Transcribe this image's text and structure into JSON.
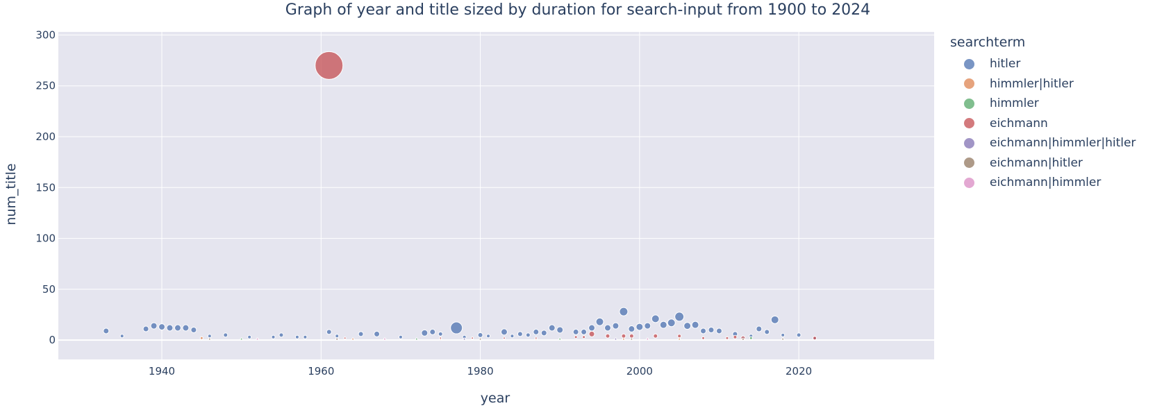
{
  "chart_data": {
    "type": "scatter",
    "title": "Graph of year and title sized by duration for search-input  from 1900 to 2024",
    "xlabel": "year",
    "ylabel": "num_title",
    "xlim": [
      1927,
      2037
    ],
    "ylim": [
      -19,
      303
    ],
    "xticks": [
      1940,
      1960,
      1980,
      2000,
      2020
    ],
    "yticks": [
      0,
      50,
      100,
      150,
      200,
      250,
      300
    ],
    "grid": true,
    "legend_title": "searchterm",
    "legend_position": "right",
    "series": [
      {
        "name": "hitler",
        "color": "#4c72b0",
        "x": [
          1933,
          1935,
          1938,
          1939,
          1940,
          1941,
          1942,
          1943,
          1944,
          1946,
          1948,
          1951,
          1954,
          1955,
          1957,
          1958,
          1961,
          1962,
          1965,
          1967,
          1970,
          1973,
          1974,
          1975,
          1977,
          1978,
          1980,
          1981,
          1983,
          1984,
          1985,
          1986,
          1987,
          1988,
          1989,
          1990,
          1992,
          1993,
          1994,
          1995,
          1996,
          1997,
          1998,
          1999,
          2000,
          2001,
          2002,
          2003,
          2004,
          2005,
          2006,
          2007,
          2008,
          2009,
          2010,
          2012,
          2013,
          2014,
          2015,
          2016,
          2017,
          2018,
          2020,
          2022
        ],
        "y": [
          9,
          4,
          11,
          14,
          13,
          12,
          12,
          12,
          10,
          4,
          5,
          3,
          3,
          5,
          3,
          3,
          8,
          4,
          6,
          6,
          3,
          7,
          8,
          6,
          12,
          3,
          5,
          4,
          8,
          4,
          6,
          5,
          8,
          7,
          12,
          10,
          8,
          8,
          12,
          18,
          12,
          14,
          28,
          11,
          13,
          14,
          21,
          15,
          17,
          23,
          14,
          15,
          9,
          10,
          9,
          6,
          2,
          4,
          11,
          8,
          20,
          5,
          5,
          2
        ],
        "size": [
          8,
          5,
          8,
          9,
          9,
          9,
          9,
          9,
          8,
          5,
          6,
          5,
          5,
          6,
          5,
          5,
          7,
          5,
          7,
          8,
          5,
          9,
          8,
          6,
          17,
          5,
          7,
          5,
          9,
          5,
          7,
          6,
          8,
          8,
          9,
          9,
          8,
          8,
          9,
          11,
          9,
          9,
          12,
          9,
          10,
          9,
          11,
          10,
          11,
          13,
          10,
          10,
          8,
          8,
          8,
          7,
          5,
          5,
          8,
          7,
          11,
          5,
          6,
          4
        ]
      },
      {
        "name": "himmler|hitler",
        "color": "#dd8452",
        "x": [
          1945,
          1964,
          1975,
          1987,
          1998,
          2005
        ],
        "y": [
          2,
          1,
          1,
          1,
          1,
          1
        ],
        "size": [
          4,
          3,
          3,
          3,
          3,
          3
        ]
      },
      {
        "name": "himmler",
        "color": "#55a868",
        "x": [
          1950,
          1972,
          1990,
          2014
        ],
        "y": [
          1,
          1,
          1,
          2
        ],
        "size": [
          3,
          3,
          3,
          4
        ]
      },
      {
        "name": "eichmann",
        "color": "#c44e52",
        "x": [
          1961,
          1963,
          1975,
          1979,
          1983,
          1987,
          1992,
          1993,
          1994,
          1996,
          1998,
          1999,
          2002,
          2005,
          2008,
          2011,
          2012,
          2013,
          2022
        ],
        "y": [
          270,
          2,
          2,
          2,
          2,
          2,
          3,
          3,
          6,
          4,
          4,
          4,
          4,
          4,
          2,
          2,
          3,
          2,
          2
        ],
        "size": [
          40,
          3,
          3,
          3,
          3,
          3,
          4,
          4,
          8,
          6,
          6,
          6,
          6,
          5,
          4,
          4,
          5,
          6,
          5
        ]
      },
      {
        "name": "eichmann|himmler|hitler",
        "color": "#8172b3",
        "x": [
          1962,
          1978,
          1997
        ],
        "y": [
          1,
          1,
          1
        ],
        "size": [
          3,
          3,
          3
        ]
      },
      {
        "name": "eichmann|hitler",
        "color": "#937860",
        "x": [
          1946,
          1962,
          1980,
          1999,
          2013,
          2018
        ],
        "y": [
          1,
          1,
          1,
          1,
          1,
          1
        ],
        "size": [
          3,
          3,
          3,
          3,
          3,
          3
        ]
      },
      {
        "name": "eichmann|himmler",
        "color": "#da8bc3",
        "x": [
          1952,
          1968,
          2001
        ],
        "y": [
          1,
          1,
          1
        ],
        "size": [
          3,
          3,
          3
        ]
      }
    ]
  }
}
